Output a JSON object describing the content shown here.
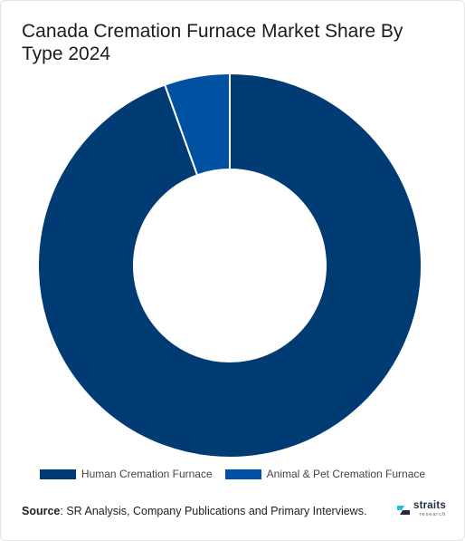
{
  "chart_data": {
    "type": "pie",
    "title": "Canada Cremation Furnace Market Share By Type 2024",
    "categories": [
      "Human Cremation Furnace",
      "Animal & Pet Cremation Furnace"
    ],
    "values": [
      94.5,
      5.5
    ],
    "colors": [
      "#003b73",
      "#0051a2"
    ],
    "legend_position": "bottom",
    "donut": true
  },
  "source": {
    "label": "Source",
    "text": ": SR Analysis, Company Publications and Primary Interviews."
  },
  "logo": {
    "main": "straits",
    "sub": "research",
    "icon": "straits-logo-icon"
  }
}
